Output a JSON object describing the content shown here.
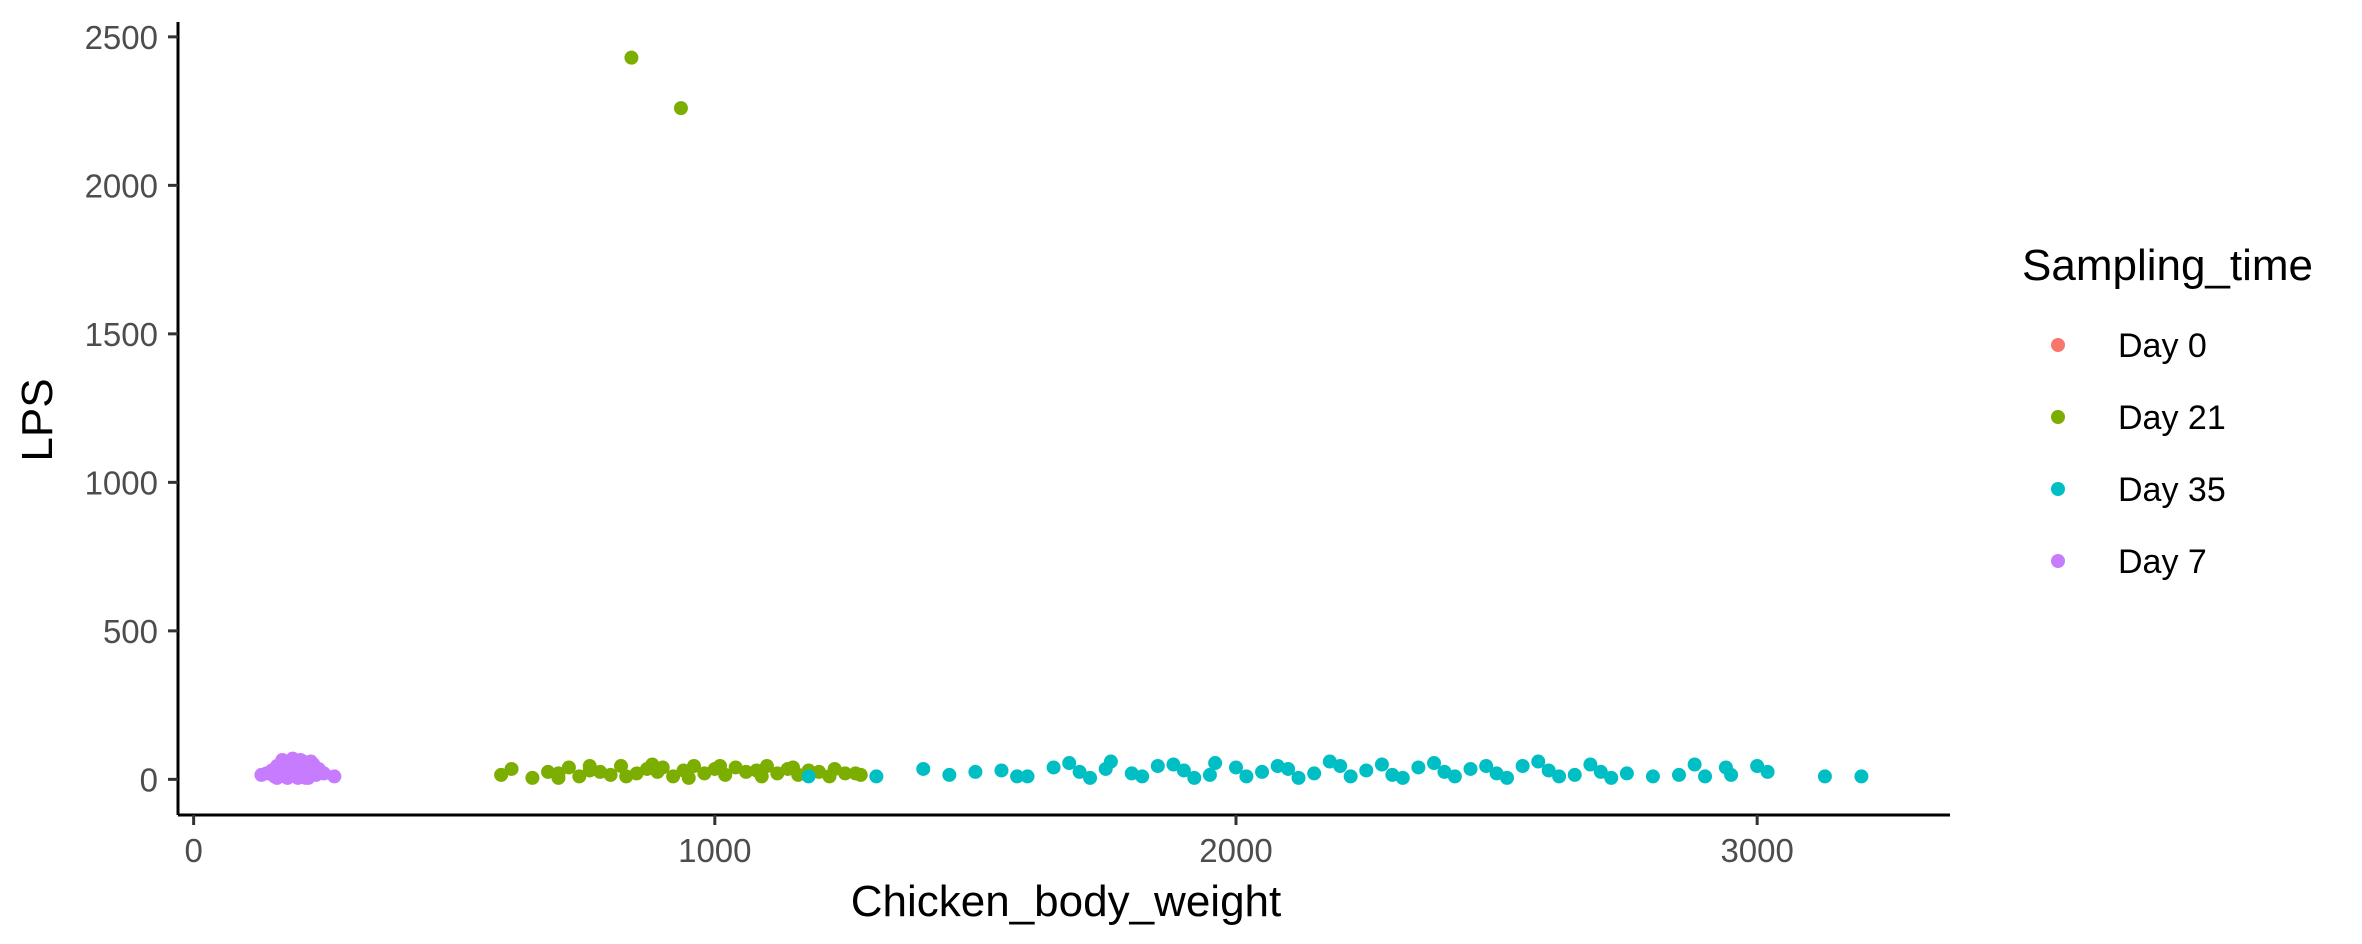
{
  "chart_data": {
    "type": "scatter",
    "title": "",
    "xlabel": "Chicken_body_weight",
    "ylabel": "LPS",
    "xlim": [
      -30,
      3370
    ],
    "ylim": [
      -120,
      2550
    ],
    "x_ticks": [
      0,
      1000,
      2000,
      3000
    ],
    "y_ticks": [
      0,
      500,
      1000,
      1500,
      2000,
      2500
    ],
    "grid": false,
    "legend": {
      "title": "Sampling_time",
      "position": "right"
    },
    "series": [
      {
        "name": "Day 0",
        "color": "#F8766D",
        "x": [],
        "y": []
      },
      {
        "name": "Day 21",
        "color": "#7CAE00",
        "x": [
          840,
          935,
          590,
          610,
          650,
          680,
          700,
          720,
          740,
          760,
          780,
          800,
          820,
          850,
          870,
          890,
          900,
          920,
          940,
          960,
          980,
          1000,
          1020,
          1040,
          1060,
          1080,
          1100,
          1120,
          1140,
          1160,
          1180,
          1200,
          1220,
          1250,
          1280,
          700,
          760,
          830,
          880,
          950,
          1010,
          1090,
          1150,
          1230,
          1270
        ],
        "y": [
          2430,
          2260,
          15,
          35,
          5,
          25,
          20,
          40,
          10,
          30,
          25,
          15,
          45,
          20,
          35,
          25,
          40,
          10,
          30,
          45,
          20,
          35,
          15,
          40,
          25,
          30,
          45,
          20,
          35,
          15,
          30,
          25,
          10,
          20,
          15,
          5,
          45,
          10,
          50,
          5,
          45,
          10,
          40,
          35,
          20
        ]
      },
      {
        "name": "Day 35",
        "color": "#00BFC4",
        "x": [
          1180,
          1310,
          1400,
          1450,
          1500,
          1550,
          1600,
          1650,
          1700,
          1750,
          1800,
          1850,
          1900,
          1950,
          2000,
          2050,
          2100,
          2150,
          2200,
          2250,
          2300,
          2350,
          2400,
          2450,
          2500,
          2550,
          2600,
          2650,
          2700,
          2750,
          2800,
          2850,
          2900,
          2950,
          3000,
          3020,
          3130,
          3200,
          1680,
          1760,
          1880,
          1960,
          2080,
          2180,
          2280,
          2380,
          2480,
          2580,
          2680,
          1580,
          1720,
          1820,
          1920,
          2020,
          2120,
          2220,
          2320,
          2420,
          2520,
          2620,
          2720,
          2880,
          2940
        ],
        "y": [
          10,
          10,
          35,
          15,
          25,
          30,
          10,
          40,
          25,
          35,
          20,
          45,
          30,
          15,
          40,
          25,
          35,
          20,
          45,
          30,
          15,
          40,
          25,
          35,
          20,
          45,
          30,
          15,
          25,
          20,
          10,
          15,
          10,
          15,
          45,
          25,
          10,
          10,
          55,
          60,
          50,
          55,
          45,
          60,
          50,
          55,
          45,
          60,
          50,
          10,
          5,
          10,
          5,
          10,
          5,
          10,
          5,
          10,
          5,
          10,
          5,
          50,
          40
        ]
      },
      {
        "name": "Day 7",
        "color": "#C77CFF",
        "x": [
          130,
          140,
          150,
          155,
          160,
          165,
          170,
          175,
          180,
          185,
          190,
          195,
          200,
          205,
          210,
          215,
          220,
          225,
          230,
          235,
          240,
          250,
          270,
          160,
          170,
          180,
          190,
          200,
          210,
          220,
          230,
          165,
          175,
          185,
          195,
          205,
          215,
          225
        ],
        "y": [
          15,
          20,
          30,
          10,
          45,
          25,
          55,
          15,
          40,
          60,
          20,
          50,
          30,
          65,
          10,
          45,
          55,
          25,
          40,
          15,
          35,
          20,
          10,
          5,
          65,
          5,
          70,
          5,
          60,
          5,
          50,
          35,
          10,
          50,
          15,
          45,
          5,
          60
        ]
      }
    ]
  }
}
